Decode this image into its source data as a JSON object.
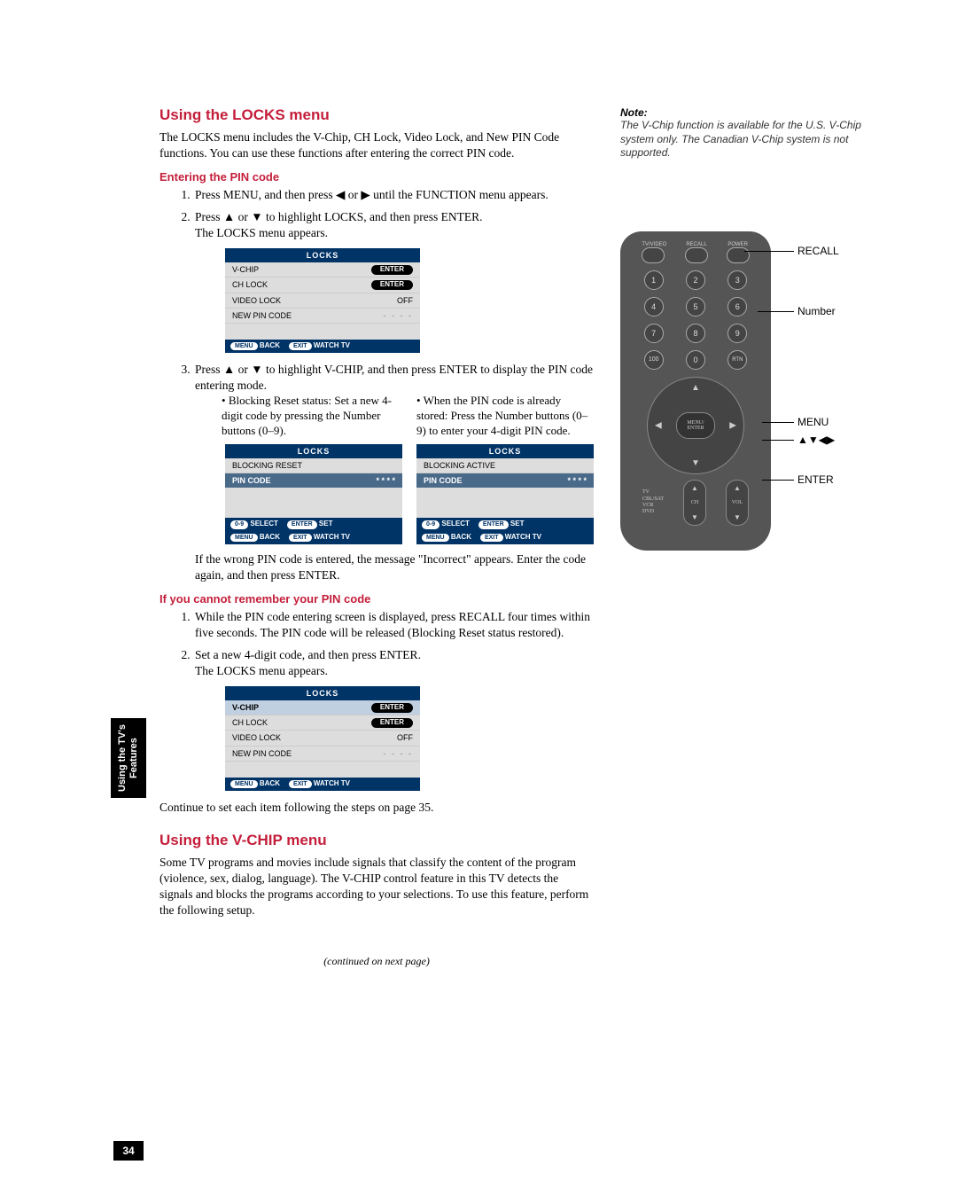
{
  "side_tab": "Using the TV's\nFeatures",
  "page_number": "34",
  "h_locks": "Using the LOCKS menu",
  "p_locks_intro": "The LOCKS menu includes the V-Chip, CH Lock, Video Lock, and New PIN Code functions. You can use these functions after entering the correct PIN code.",
  "h_enter_pin": "Entering the PIN code",
  "step1": "Press MENU, and then press ◀ or ▶ until the FUNCTION menu appears.",
  "step2a": "Press ▲ or ▼ to highlight LOCKS, and then press ENTER.",
  "step2b": "The LOCKS menu appears.",
  "step3": "Press ▲ or ▼ to highlight V-CHIP, and then press ENTER to display the PIN code entering mode.",
  "bullet_reset": "Blocking Reset status: Set a new 4-digit code by pressing the Number buttons (0–9).",
  "bullet_stored": "When the PIN code is already stored: Press the Number buttons (0–9) to enter your 4-digit PIN code.",
  "p_wrong": "If the wrong PIN code is entered, the message \"Incorrect\" appears. Enter the code again, and then press ENTER.",
  "h_forgot": "If you cannot remember your PIN code",
  "forgot1": "While the PIN code entering screen is displayed, press RECALL four times within five seconds. The PIN code will be released (Blocking Reset status restored).",
  "forgot2a": "Set a new 4-digit code, and then press ENTER.",
  "forgot2b": "The LOCKS menu appears.",
  "p_continue": "Continue to set each item following the steps on page 35.",
  "h_vchip": "Using the V-CHIP menu",
  "p_vchip": "Some TV programs and movies include signals that classify the content of the program (violence, sex, dialog, language). The V-CHIP control feature in this TV detects the signals and blocks the programs according to your selections. To use this feature, perform the following setup.",
  "continued": "(continued on next page)",
  "note_head": "Note:",
  "note_body": "The V-Chip function is available for the U.S. V-Chip system only. The Canadian V-Chip system is not supported.",
  "locks_panel": {
    "title": "LOCKS",
    "rows": [
      {
        "label": "V-CHIP",
        "value": "ENTER",
        "pill": true
      },
      {
        "label": "CH LOCK",
        "value": "ENTER",
        "pill": true
      },
      {
        "label": "VIDEO LOCK",
        "value": "OFF",
        "pill": false
      },
      {
        "label": "NEW PIN CODE",
        "value": "- - - -",
        "pill": false,
        "dash": true
      }
    ],
    "footer_menu": "MENU",
    "footer_back": "BACK",
    "footer_exit": "EXIT",
    "footer_watch": "WATCH TV"
  },
  "pin_panel_left": {
    "title": "LOCKS",
    "sub": "BLOCKING RESET",
    "pin_label": "PIN CODE",
    "pin_val": "* * * *",
    "f_sel": "0–9 SELECT",
    "f_enter": "ENTER",
    "f_set": "SET",
    "f_menu": "MENU",
    "f_back": "BACK",
    "f_exit": "EXIT",
    "f_watch": "WATCH TV"
  },
  "pin_panel_right": {
    "title": "LOCKS",
    "sub": "BLOCKING ACTIVE",
    "pin_label": "PIN CODE",
    "pin_val": "* * * *"
  },
  "callouts": {
    "recall": "RECALL",
    "number": "Number",
    "menu": "MENU",
    "arrows": "▲▼◀▶",
    "enter": "ENTER"
  },
  "remote": {
    "top_labels": [
      "TV/VIDEO",
      "RECALL",
      "POWER"
    ],
    "center": "MENU/\nENTER",
    "rocker_left": "CH",
    "rocker_right": "VOL",
    "side_list": "TV\nCBL/SAT\nVCR\nDVD"
  },
  "colors": {
    "heading": "#c41e3a",
    "panel_header": "#003366",
    "panel_bg": "#dddddd",
    "pin_row": "#4a6a8a",
    "remote_body": "#555555"
  }
}
